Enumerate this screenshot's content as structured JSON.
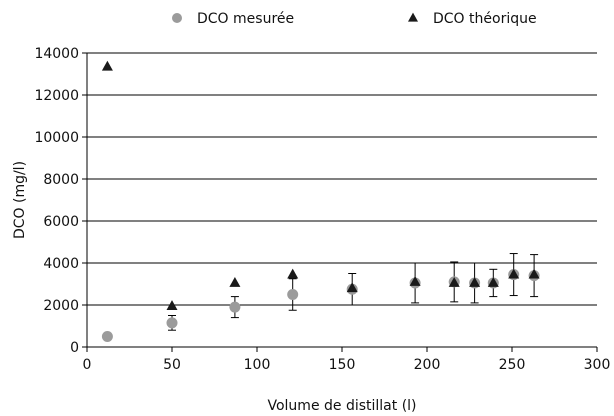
{
  "chart_data": {
    "type": "scatter",
    "xlabel": "Volume de distillat (l)",
    "ylabel": "DCO (mg/l)",
    "xlim": [
      0,
      300
    ],
    "ylim": [
      0,
      14000
    ],
    "xticks": [
      0,
      50,
      100,
      150,
      200,
      250,
      300
    ],
    "yticks": [
      0,
      2000,
      4000,
      6000,
      8000,
      10000,
      12000,
      14000
    ],
    "grid": "horizontal",
    "legend_position": "top",
    "series": [
      {
        "name": "DCO mesurée",
        "marker": "circle",
        "color": "#9b9b9b",
        "x": [
          12,
          50,
          87,
          121,
          156,
          193,
          216,
          228,
          239,
          251,
          263
        ],
        "y": [
          500,
          1150,
          1900,
          2500,
          2750,
          3050,
          3100,
          3050,
          3050,
          3450,
          3400
        ],
        "error": [
          0,
          350,
          500,
          750,
          750,
          950,
          950,
          950,
          650,
          1000,
          1000
        ]
      },
      {
        "name": "DCO théorique",
        "marker": "triangle",
        "color": "#1a1a1a",
        "x": [
          12,
          50,
          87,
          121,
          156,
          193,
          216,
          228,
          239,
          251,
          263
        ],
        "y": [
          13350,
          1950,
          3050,
          3450,
          2800,
          3100,
          3050,
          3050,
          3050,
          3450,
          3450
        ],
        "error": [
          0,
          0,
          0,
          0,
          0,
          0,
          0,
          0,
          0,
          0,
          0
        ]
      }
    ]
  }
}
